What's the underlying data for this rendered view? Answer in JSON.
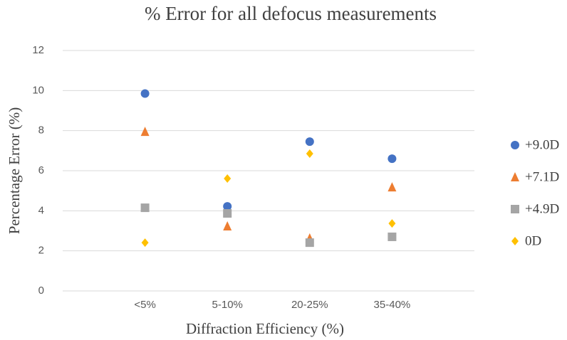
{
  "chart_data": {
    "type": "scatter",
    "title": "% Error for all defocus measurements",
    "x_label": "Diffraction Efficiency (%)",
    "y_label": "Percentage Error (%)",
    "categories": [
      "<5%",
      "5-10%",
      "20-25%",
      "35-40%"
    ],
    "series": [
      {
        "name": "+9.0D",
        "color": "#4472c4",
        "marker": "circle",
        "values": [
          9.85,
          4.22,
          7.45,
          6.6
        ]
      },
      {
        "name": "+7.1D",
        "color": "#ed7d31",
        "marker": "triangle",
        "values": [
          7.95,
          3.23,
          2.63,
          5.18
        ]
      },
      {
        "name": "+4.9D",
        "color": "#a5a5a5",
        "marker": "square",
        "values": [
          4.15,
          3.87,
          2.41,
          2.7
        ]
      },
      {
        "name": "0D",
        "color": "#ffc000",
        "marker": "diamond",
        "values": [
          2.41,
          5.61,
          6.85,
          3.37
        ]
      }
    ],
    "ylim": [
      0,
      12
    ],
    "yticks": [
      0,
      2,
      4,
      6,
      8,
      10,
      12
    ],
    "grid": true,
    "legend": "right"
  }
}
